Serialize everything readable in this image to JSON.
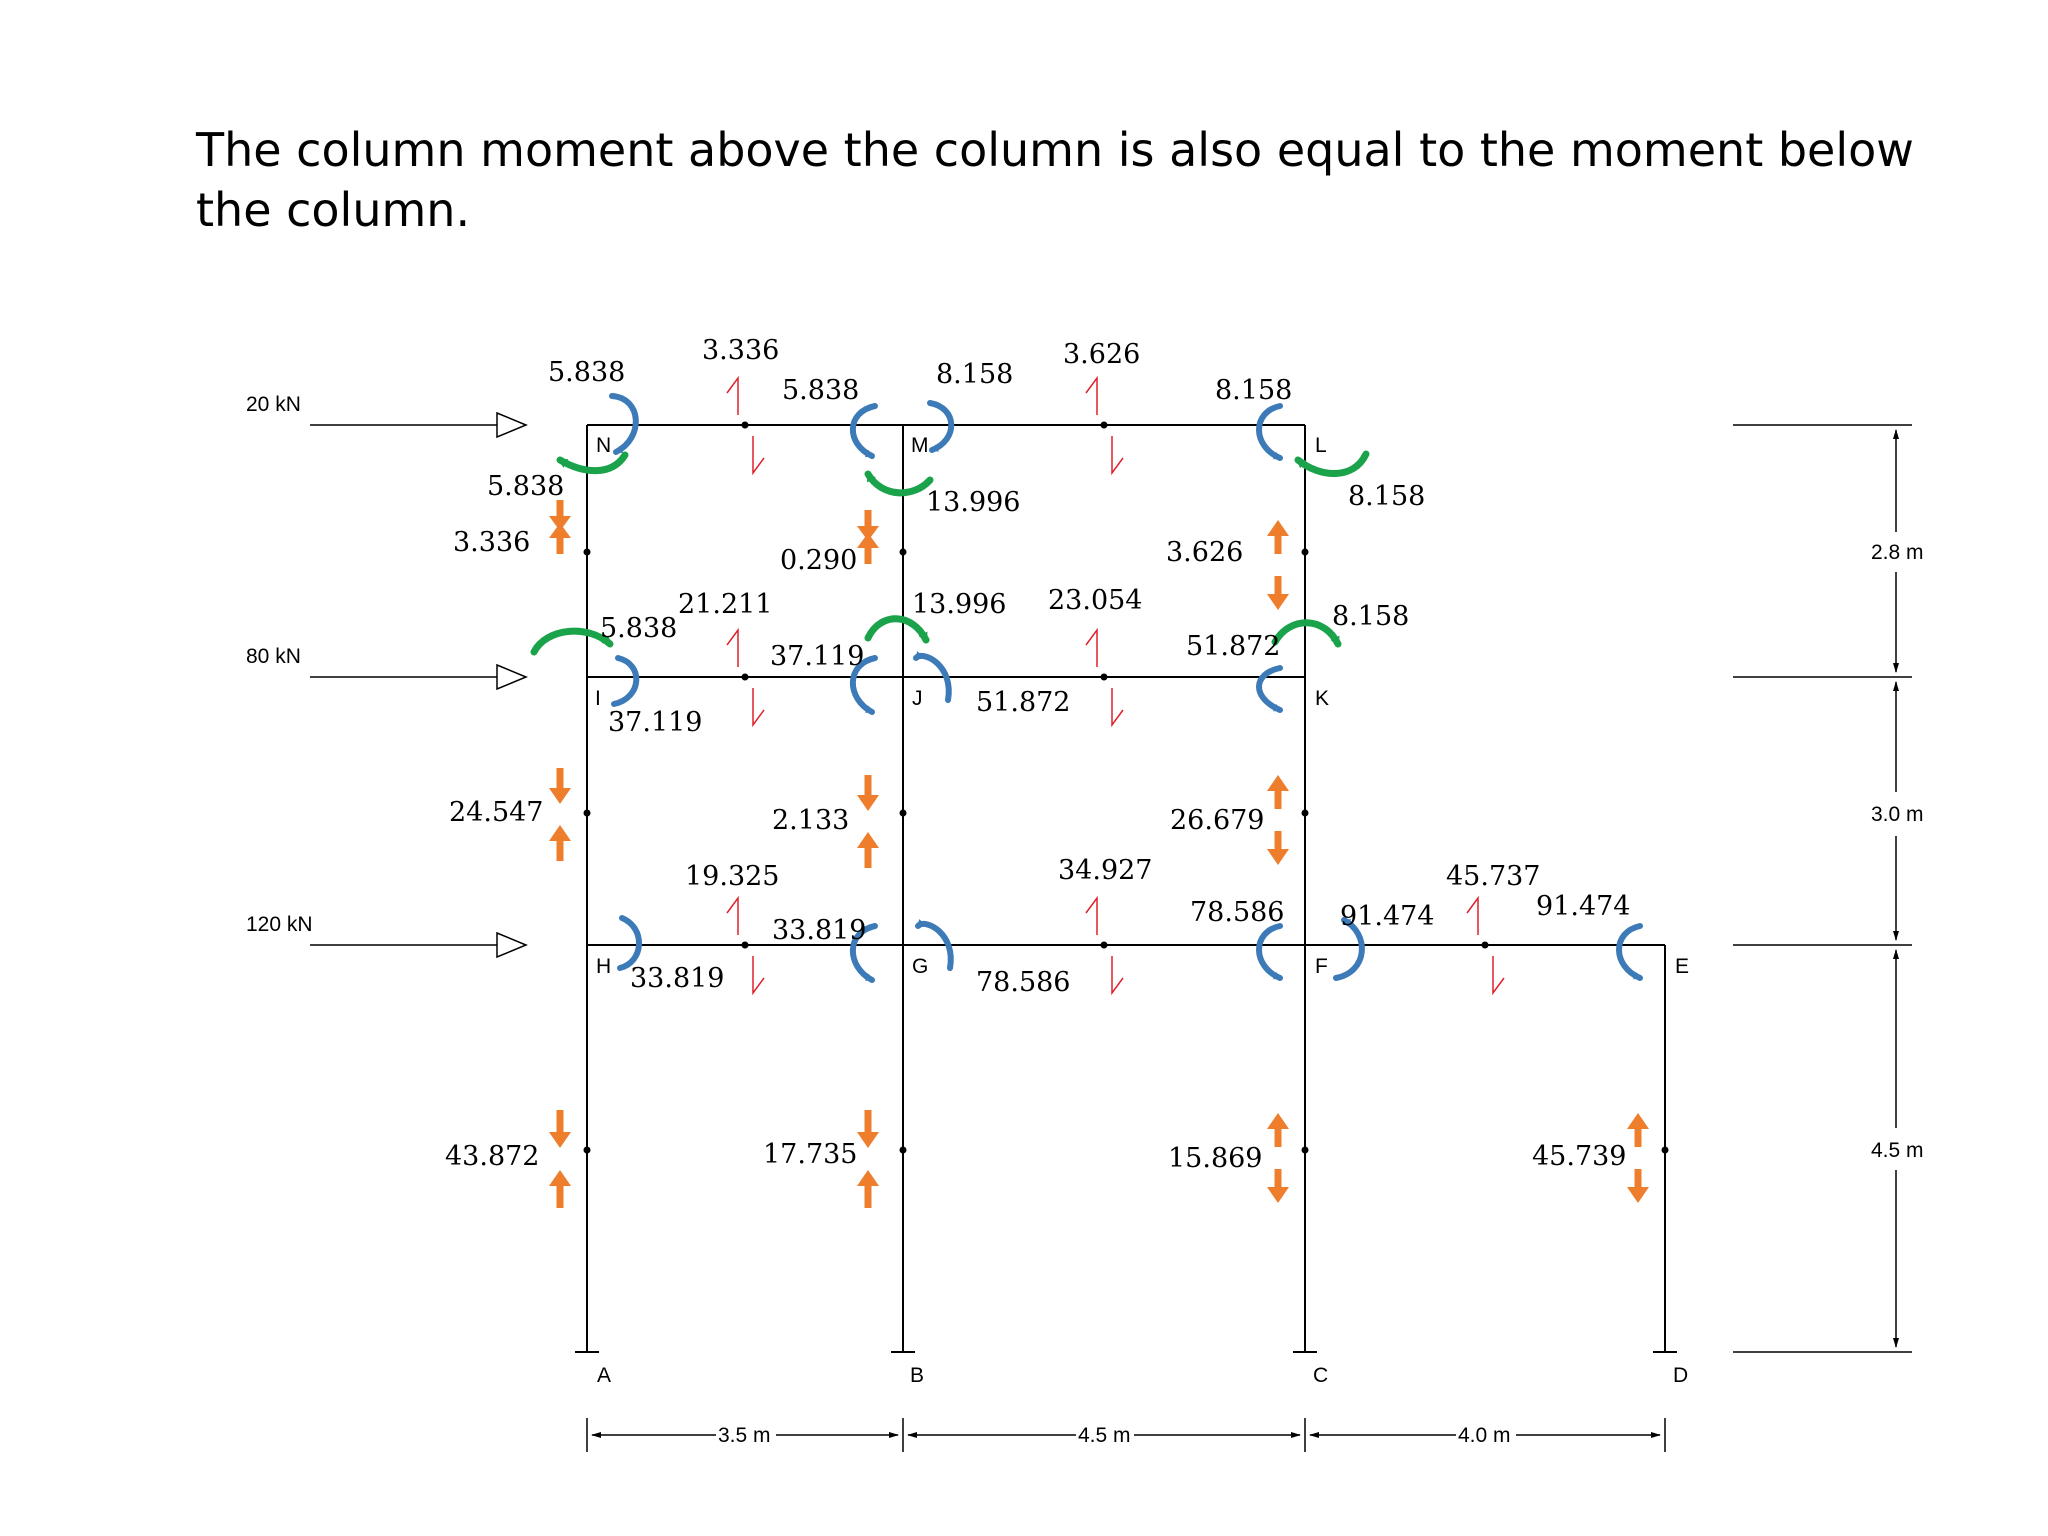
{
  "title": "The column moment above the column is also equal to the moment below the column.",
  "colors": {
    "member": "#000000",
    "shear": "#e0202a",
    "moment_blue": "#3d7ab8",
    "moment_green": "#1aa34a",
    "axial": "#ee7d2c"
  },
  "loads": {
    "top": "20 kN",
    "middle": "80 kN",
    "bottom": "120 kN"
  },
  "node_labels": {
    "A": "A",
    "B": "B",
    "C": "C",
    "D": "D",
    "E": "E",
    "F": "F",
    "G": "G",
    "H": "H",
    "I": "I",
    "J": "J",
    "K": "K",
    "L": "L",
    "M": "M",
    "N": "N"
  },
  "dimensions": {
    "span_ab": "3.5 m",
    "span_bc": "4.5 m",
    "span_cd": "4.0 m",
    "story_top": "2.8 m",
    "story_mid": "3.0 m",
    "story_bottom": "4.5 m"
  },
  "values": {
    "n_top": "5.838",
    "nm_shear": "3.336",
    "m_left": "5.838",
    "m_right": "8.158",
    "ml_shear": "3.626",
    "l_top": "8.158",
    "n_left": "5.838",
    "l_right": "8.158",
    "m_below": "13.996",
    "col_an_top": "3.336",
    "col_bm_top": "0.290",
    "col_cl_top": "3.626",
    "i_top": "5.838",
    "ij_shear": "21.211",
    "j_left_top": "13.996",
    "jk_shear": "23.054",
    "k_right": "8.158",
    "j_left": "37.119",
    "k_left": "51.872",
    "i_below": "37.119",
    "j_right": "51.872",
    "col_an_mid": "24.547",
    "col_bm_mid": "2.133",
    "col_cl_mid": "26.679",
    "hg_shear": "19.325",
    "gf_shear": "34.927",
    "fe_shear": "45.737",
    "g_left": "33.819",
    "f_left": "78.586",
    "f_right": "91.474",
    "e_left": "91.474",
    "h_right": "33.819",
    "g_right": "78.586",
    "col_a_bot": "43.872",
    "col_b_bot": "17.735",
    "col_c_bot": "15.869",
    "col_d_bot": "45.739"
  }
}
